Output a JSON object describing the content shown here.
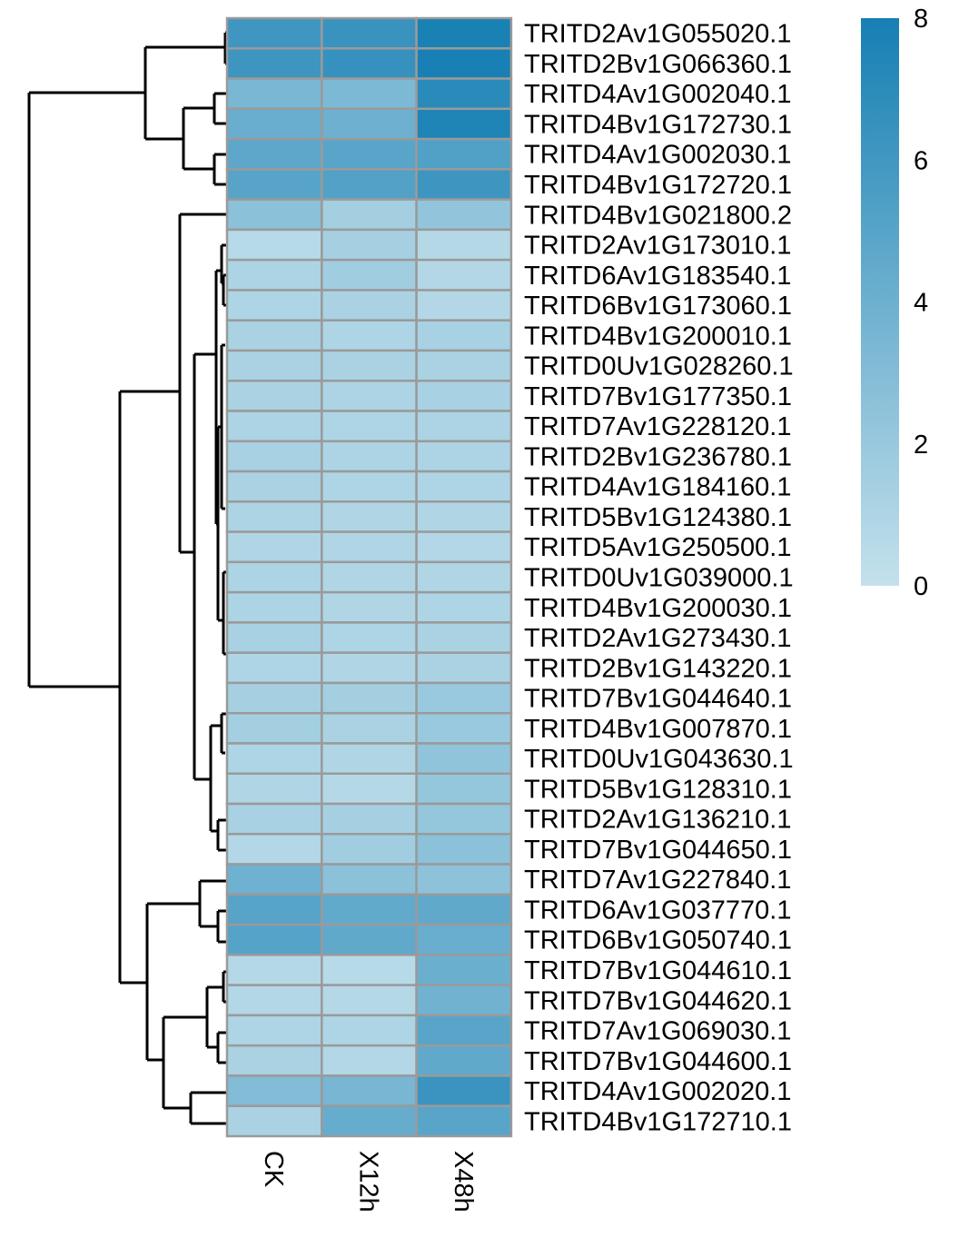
{
  "chart_data": {
    "type": "heatmap",
    "title": "",
    "columns": [
      "CK",
      "X12h",
      "X48h"
    ],
    "rows": [
      "TRITD2Av1G055020.1",
      "TRITD2Bv1G066360.1",
      "TRITD4Av1G002040.1",
      "TRITD4Bv1G172730.1",
      "TRITD4Av1G002030.1",
      "TRITD4Bv1G172720.1",
      "TRITD4Bv1G021800.2",
      "TRITD2Av1G173010.1",
      "TRITD6Av1G183540.1",
      "TRITD6Bv1G173060.1",
      "TRITD4Bv1G200010.1",
      "TRITD0Uv1G028260.1",
      "TRITD7Bv1G177350.1",
      "TRITD7Av1G228120.1",
      "TRITD2Bv1G236780.1",
      "TRITD4Av1G184160.1",
      "TRITD5Bv1G124380.1",
      "TRITD5Av1G250500.1",
      "TRITD0Uv1G039000.1",
      "TRITD4Bv1G200030.1",
      "TRITD2Av1G273430.1",
      "TRITD2Bv1G143220.1",
      "TRITD7Bv1G044640.1",
      "TRITD4Bv1G007870.1",
      "TRITD0Uv1G043630.1",
      "TRITD5Bv1G128310.1",
      "TRITD2Av1G136210.1",
      "TRITD7Bv1G044650.1",
      "TRITD7Av1G227840.1",
      "TRITD6Av1G037770.1",
      "TRITD6Bv1G050740.1",
      "TRITD7Bv1G044610.1",
      "TRITD7Bv1G044620.1",
      "TRITD7Av1G069030.1",
      "TRITD7Bv1G044600.1",
      "TRITD4Av1G002020.1",
      "TRITD4Bv1G172710.1"
    ],
    "values": [
      [
        6.1,
        6.4,
        7.8
      ],
      [
        6.2,
        6.5,
        7.9
      ],
      [
        3.4,
        3.3,
        7.1
      ],
      [
        4.2,
        4.0,
        7.6
      ],
      [
        4.7,
        4.9,
        5.3
      ],
      [
        5.0,
        5.2,
        6.2
      ],
      [
        2.6,
        1.5,
        2.3
      ],
      [
        0.6,
        1.4,
        0.7
      ],
      [
        1.1,
        1.6,
        0.8
      ],
      [
        1.0,
        1.2,
        0.8
      ],
      [
        1.2,
        1.0,
        1.3
      ],
      [
        1.2,
        1.2,
        1.2
      ],
      [
        1.2,
        1.1,
        1.3
      ],
      [
        1.1,
        1.0,
        1.1
      ],
      [
        1.3,
        1.1,
        1.1
      ],
      [
        1.2,
        1.0,
        1.0
      ],
      [
        1.1,
        0.9,
        0.9
      ],
      [
        0.9,
        0.9,
        0.8
      ],
      [
        1.1,
        0.9,
        0.9
      ],
      [
        1.1,
        0.9,
        1.0
      ],
      [
        1.3,
        1.0,
        1.2
      ],
      [
        1.0,
        0.9,
        1.2
      ],
      [
        1.4,
        1.5,
        2.0
      ],
      [
        1.5,
        1.2,
        2.0
      ],
      [
        1.0,
        0.9,
        2.4
      ],
      [
        0.9,
        0.7,
        2.2
      ],
      [
        1.3,
        1.4,
        2.2
      ],
      [
        0.8,
        1.6,
        2.6
      ],
      [
        3.9,
        2.6,
        2.5
      ],
      [
        5.0,
        4.5,
        4.6
      ],
      [
        5.1,
        4.6,
        4.2
      ],
      [
        0.7,
        0.6,
        4.1
      ],
      [
        0.8,
        0.7,
        3.8
      ],
      [
        1.0,
        1.0,
        4.9
      ],
      [
        1.2,
        0.8,
        4.6
      ],
      [
        3.0,
        3.5,
        6.3
      ],
      [
        1.2,
        4.3,
        4.9
      ]
    ],
    "legend": {
      "ticks": [
        "8",
        "6",
        "4",
        "2",
        "0"
      ],
      "min": 0,
      "max": 8,
      "low_color": "#c4e1ec",
      "high_color": "#167fb3",
      "placement": "top-right"
    },
    "dendrogram": "rows",
    "grid": true
  }
}
